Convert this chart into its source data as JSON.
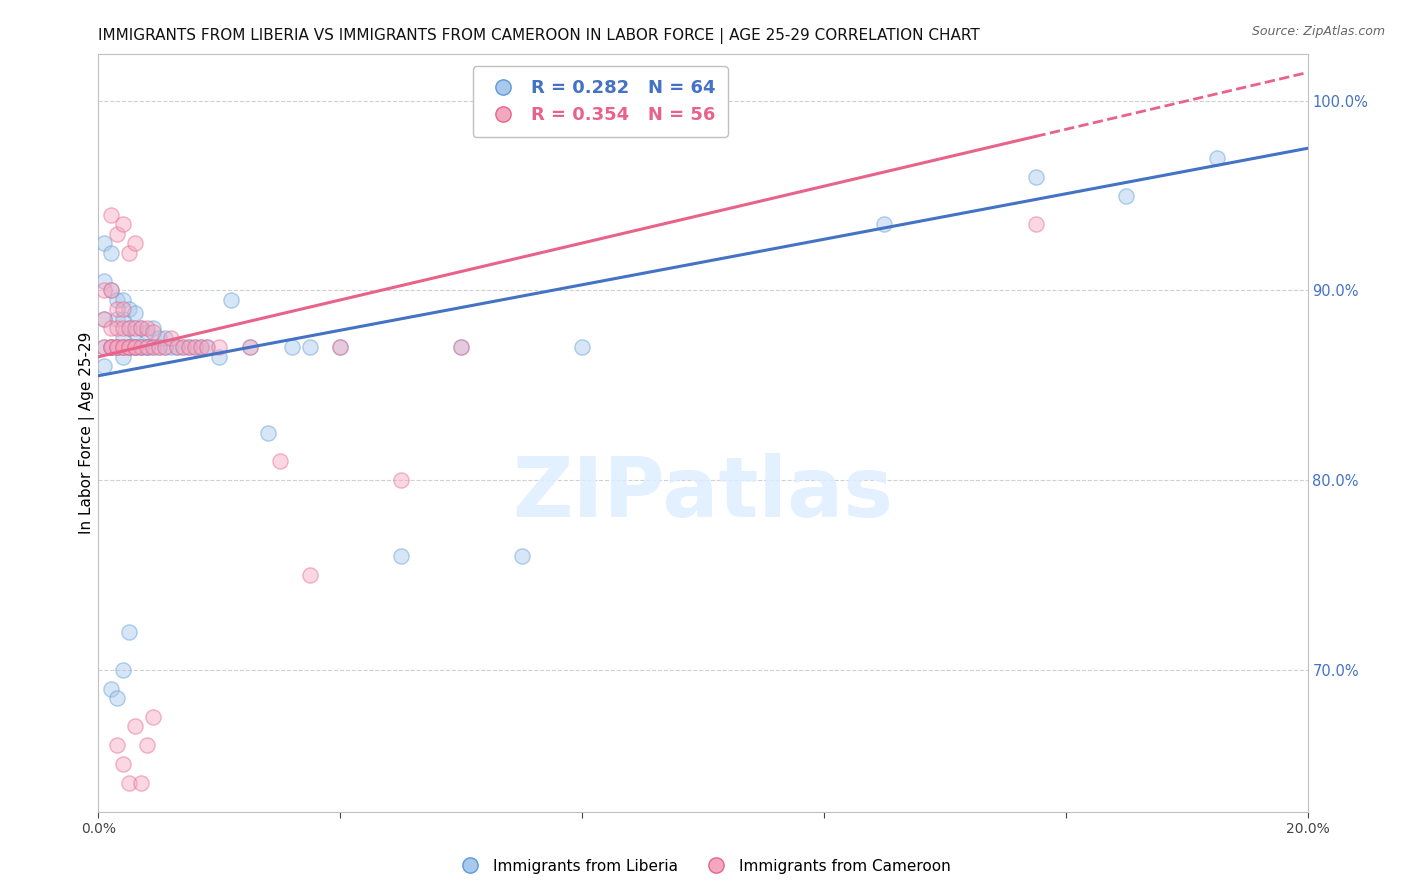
{
  "title": "IMMIGRANTS FROM LIBERIA VS IMMIGRANTS FROM CAMEROON IN LABOR FORCE | AGE 25-29 CORRELATION CHART",
  "source": "Source: ZipAtlas.com",
  "ylabel": "In Labor Force | Age 25-29",
  "x_min": 0.0,
  "x_max": 0.2,
  "y_min": 0.625,
  "y_max": 1.025,
  "right_yticks": [
    1.0,
    0.9,
    0.8,
    0.7
  ],
  "bottom_xticks": [
    0.0,
    0.04,
    0.08,
    0.12,
    0.16,
    0.2
  ],
  "liberia_color": "#a8c8ed",
  "cameroon_color": "#f4a8c0",
  "liberia_edge_color": "#5b9bd5",
  "cameroon_edge_color": "#e8638a",
  "liberia_line_color": "#4472c4",
  "cameroon_line_color": "#e8638a",
  "liberia_R": 0.282,
  "liberia_N": 64,
  "cameroon_R": 0.354,
  "cameroon_N": 56,
  "watermark": "ZIPatlas",
  "scatter_size": 120,
  "scatter_alpha": 0.45,
  "scatter_edge_alpha": 0.7,
  "liberia_line_intercept": 0.855,
  "liberia_line_slope": 0.6,
  "cameroon_line_intercept": 0.865,
  "cameroon_line_slope": 0.75,
  "liberia_x": [
    0.001,
    0.001,
    0.001,
    0.001,
    0.001,
    0.002,
    0.002,
    0.002,
    0.002,
    0.003,
    0.003,
    0.003,
    0.003,
    0.004,
    0.004,
    0.004,
    0.004,
    0.004,
    0.005,
    0.005,
    0.005,
    0.005,
    0.006,
    0.006,
    0.006,
    0.006,
    0.007,
    0.007,
    0.007,
    0.008,
    0.008,
    0.008,
    0.009,
    0.009,
    0.01,
    0.01,
    0.011,
    0.011,
    0.012,
    0.013,
    0.014,
    0.015,
    0.016,
    0.017,
    0.018,
    0.02,
    0.022,
    0.025,
    0.028,
    0.032,
    0.035,
    0.04,
    0.05,
    0.06,
    0.07,
    0.08,
    0.13,
    0.155,
    0.17,
    0.185,
    0.002,
    0.003,
    0.004,
    0.005
  ],
  "liberia_y": [
    0.87,
    0.885,
    0.905,
    0.925,
    0.86,
    0.87,
    0.9,
    0.92,
    0.87,
    0.87,
    0.885,
    0.895,
    0.87,
    0.865,
    0.875,
    0.885,
    0.895,
    0.87,
    0.87,
    0.88,
    0.89,
    0.87,
    0.87,
    0.878,
    0.888,
    0.87,
    0.87,
    0.88,
    0.87,
    0.87,
    0.878,
    0.87,
    0.87,
    0.88,
    0.87,
    0.875,
    0.87,
    0.875,
    0.87,
    0.87,
    0.87,
    0.87,
    0.87,
    0.87,
    0.87,
    0.865,
    0.895,
    0.87,
    0.825,
    0.87,
    0.87,
    0.87,
    0.76,
    0.87,
    0.76,
    0.87,
    0.935,
    0.96,
    0.95,
    0.97,
    0.69,
    0.685,
    0.7,
    0.72
  ],
  "cameroon_x": [
    0.001,
    0.001,
    0.001,
    0.002,
    0.002,
    0.002,
    0.002,
    0.003,
    0.003,
    0.003,
    0.003,
    0.004,
    0.004,
    0.004,
    0.004,
    0.005,
    0.005,
    0.005,
    0.006,
    0.006,
    0.006,
    0.007,
    0.007,
    0.008,
    0.008,
    0.009,
    0.009,
    0.01,
    0.011,
    0.012,
    0.013,
    0.014,
    0.015,
    0.016,
    0.017,
    0.018,
    0.02,
    0.025,
    0.03,
    0.035,
    0.04,
    0.05,
    0.06,
    0.002,
    0.003,
    0.004,
    0.005,
    0.006,
    0.155,
    0.003,
    0.004,
    0.005,
    0.006,
    0.007,
    0.008,
    0.009
  ],
  "cameroon_y": [
    0.87,
    0.885,
    0.9,
    0.87,
    0.88,
    0.9,
    0.87,
    0.87,
    0.88,
    0.87,
    0.89,
    0.87,
    0.88,
    0.87,
    0.89,
    0.87,
    0.88,
    0.87,
    0.87,
    0.88,
    0.87,
    0.87,
    0.88,
    0.87,
    0.88,
    0.87,
    0.878,
    0.87,
    0.87,
    0.875,
    0.87,
    0.87,
    0.87,
    0.87,
    0.87,
    0.87,
    0.87,
    0.87,
    0.81,
    0.75,
    0.87,
    0.8,
    0.87,
    0.94,
    0.93,
    0.935,
    0.92,
    0.925,
    0.935,
    0.66,
    0.65,
    0.64,
    0.67,
    0.64,
    0.66,
    0.675
  ]
}
